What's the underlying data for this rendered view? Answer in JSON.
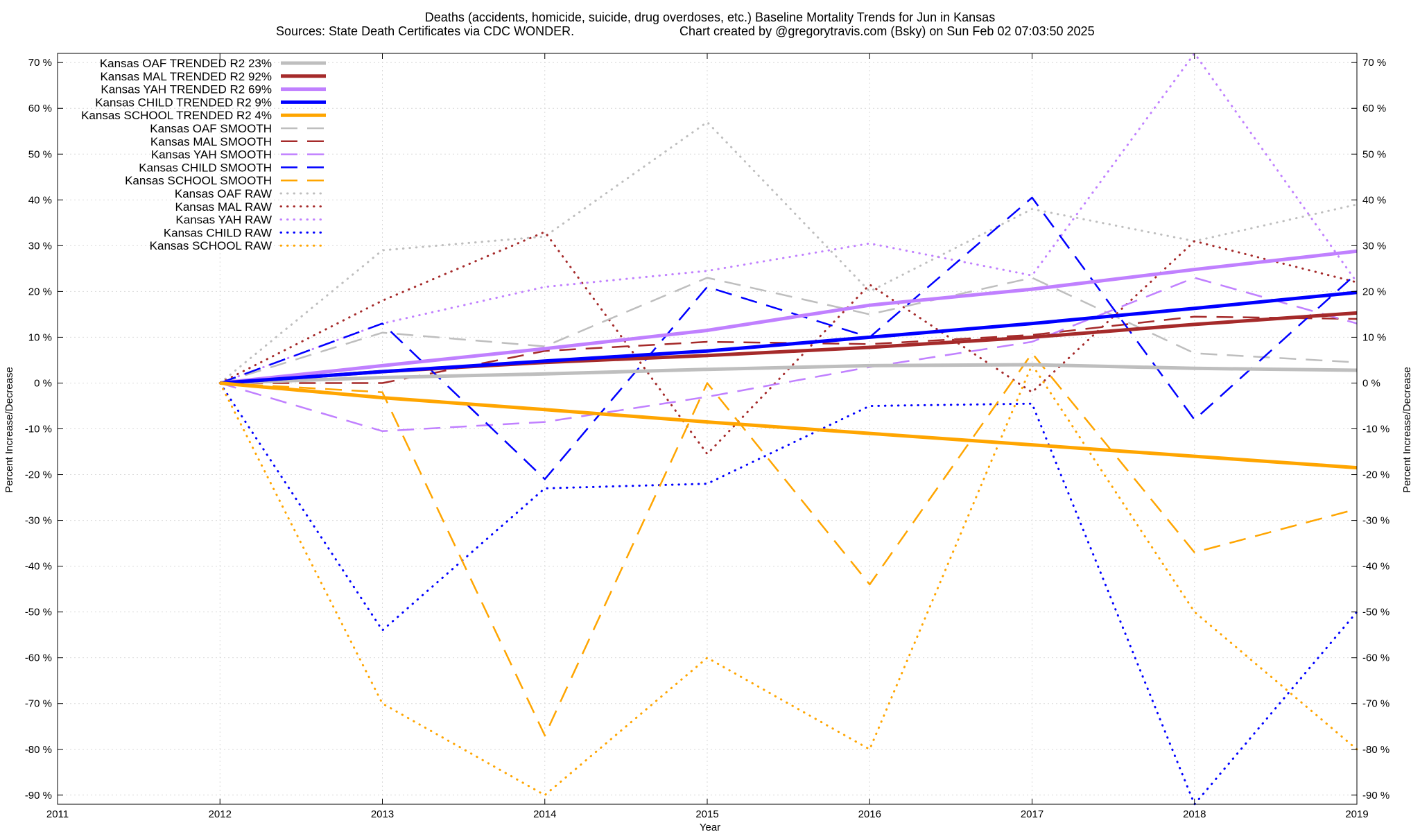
{
  "chart_data": {
    "type": "line",
    "title": "Deaths (accidents, homicide, suicide, drug overdoses, etc.)  Baseline Mortality Trends for Jun in Kansas",
    "subtitle_left": "Sources: State Death Certificates via CDC WONDER.",
    "subtitle_right": "Chart created by @gregorytravis.com (Bsky) on Sun Feb 02 07:03:50 2025",
    "xlabel": "Year",
    "ylabel": "Percent Increase/Decrease",
    "y2label": "Percent Increase/Decrease",
    "xlim": [
      2011,
      2019
    ],
    "ylim": [
      -92,
      72
    ],
    "x_ticks": [
      2011,
      2012,
      2013,
      2014,
      2015,
      2016,
      2017,
      2018,
      2019
    ],
    "y_ticks": [
      -90,
      -80,
      -70,
      -60,
      -50,
      -40,
      -30,
      -20,
      -10,
      0,
      10,
      20,
      30,
      40,
      50,
      60,
      70
    ],
    "y_tick_suffix": " %",
    "grid": true,
    "legend_position": "top-left",
    "series": [
      {
        "name": "Kansas OAF TRENDED R2  23%",
        "style": "solid",
        "color": "#bebebe",
        "x": [
          2012,
          2013,
          2014,
          2015,
          2016,
          2017,
          2018,
          2019
        ],
        "values": [
          0,
          1.2,
          2.0,
          3.0,
          3.8,
          4.0,
          3.2,
          2.8
        ]
      },
      {
        "name": "Kansas MAL TRENDED R2  92%",
        "style": "solid",
        "color": "#a52a2a",
        "x": [
          2012,
          2013,
          2014,
          2015,
          2016,
          2017,
          2018,
          2019
        ],
        "values": [
          0,
          2.5,
          4.5,
          6.0,
          7.8,
          10.0,
          12.8,
          15.3
        ]
      },
      {
        "name": "Kansas YAH TRENDED R2  69%",
        "style": "solid",
        "color": "#c080ff",
        "x": [
          2012,
          2013,
          2014,
          2015,
          2016,
          2017,
          2018,
          2019
        ],
        "values": [
          0,
          3.8,
          7.5,
          11.5,
          17.0,
          20.5,
          24.8,
          28.8
        ]
      },
      {
        "name": "Kansas CHILD TRENDED R2  9%",
        "style": "solid",
        "color": "#0000ff",
        "x": [
          2012,
          2013,
          2014,
          2015,
          2016,
          2017,
          2018,
          2019
        ],
        "values": [
          0,
          2.5,
          4.8,
          7.0,
          10.0,
          13.0,
          16.3,
          19.8
        ]
      },
      {
        "name": "Kansas SCHOOL TRENDED R2  4%",
        "style": "solid",
        "color": "#ffa500",
        "x": [
          2012,
          2013,
          2014,
          2015,
          2016,
          2017,
          2018,
          2019
        ],
        "values": [
          0,
          -3.2,
          -5.8,
          -8.5,
          -11.0,
          -13.5,
          -16.0,
          -18.5
        ]
      },
      {
        "name": "Kansas OAF SMOOTH",
        "style": "dashed",
        "color": "#bebebe",
        "x": [
          2012,
          2013,
          2014,
          2015,
          2016,
          2017,
          2018,
          2019
        ],
        "values": [
          0,
          11.0,
          8.0,
          23.0,
          15.0,
          23.0,
          6.5,
          4.5
        ]
      },
      {
        "name": "Kansas MAL SMOOTH",
        "style": "dashed",
        "color": "#a52a2a",
        "x": [
          2012,
          2013,
          2014,
          2015,
          2016,
          2017,
          2018,
          2019
        ],
        "values": [
          0,
          0,
          7.0,
          9.0,
          8.5,
          10.5,
          14.5,
          14.0
        ]
      },
      {
        "name": "Kansas YAH SMOOTH",
        "style": "dashed",
        "color": "#c080ff",
        "x": [
          2012,
          2013,
          2014,
          2015,
          2016,
          2017,
          2018,
          2019
        ],
        "values": [
          0,
          -10.5,
          -8.5,
          -3.0,
          3.5,
          9.0,
          23.0,
          13.0
        ]
      },
      {
        "name": "Kansas CHILD SMOOTH",
        "style": "dashed",
        "color": "#0000ff",
        "x": [
          2012,
          2013,
          2014,
          2015,
          2016,
          2017,
          2018,
          2019
        ],
        "values": [
          0,
          13.0,
          -21.0,
          21.0,
          10.0,
          40.5,
          -8.0,
          24.0
        ]
      },
      {
        "name": "Kansas SCHOOL SMOOTH",
        "style": "dashed",
        "color": "#ffa500",
        "x": [
          2012,
          2013,
          2014,
          2015,
          2016,
          2017,
          2018,
          2019
        ],
        "values": [
          0,
          -2.0,
          -77.0,
          0,
          -44.0,
          6.5,
          -37.0,
          -27.5
        ]
      },
      {
        "name": "Kansas OAF RAW",
        "style": "dotted",
        "color": "#bebebe",
        "x": [
          2012,
          2013,
          2014,
          2015,
          2016,
          2017,
          2018,
          2019
        ],
        "values": [
          0,
          29.0,
          32.0,
          57.0,
          20.0,
          38.0,
          31.0,
          39.0
        ]
      },
      {
        "name": "Kansas MAL RAW",
        "style": "dotted",
        "color": "#a52a2a",
        "x": [
          2012,
          2013,
          2014,
          2015,
          2016,
          2017,
          2018,
          2019
        ],
        "values": [
          0,
          18.0,
          33.0,
          -15.5,
          21.5,
          -2.0,
          31.0,
          22.0
        ]
      },
      {
        "name": "Kansas YAH RAW",
        "style": "dotted",
        "color": "#c080ff",
        "x": [
          2012,
          2013,
          2014,
          2015,
          2016,
          2017,
          2018,
          2019
        ],
        "values": [
          0,
          13.0,
          21.0,
          24.5,
          30.5,
          23.5,
          72.0,
          22.0
        ]
      },
      {
        "name": "Kansas CHILD RAW",
        "style": "dotted",
        "color": "#0000ff",
        "x": [
          2012,
          2013,
          2014,
          2015,
          2016,
          2017,
          2018,
          2019
        ],
        "values": [
          0,
          -54.0,
          -23.0,
          -22.0,
          -5.0,
          -4.5,
          -92.0,
          -50.0
        ]
      },
      {
        "name": "Kansas SCHOOL RAW",
        "style": "dotted",
        "color": "#ffa500",
        "x": [
          2012,
          2013,
          2014,
          2015,
          2016,
          2017,
          2018,
          2019
        ],
        "values": [
          0,
          -70.0,
          -90.0,
          -60.0,
          -80.0,
          4.0,
          -50.0,
          -80.0
        ]
      }
    ]
  }
}
